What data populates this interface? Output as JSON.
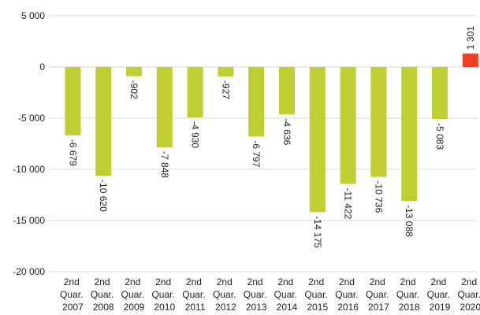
{
  "chart_data": {
    "type": "bar",
    "categories": [
      "2nd Quar. 2007",
      "2nd Quar. 2008",
      "2nd Quar. 2009",
      "2nd Quar. 2010",
      "2nd Quar. 2011",
      "2nd Quar. 2012",
      "2nd Quar. 2013",
      "2nd Quar. 2014",
      "2nd Quar. 2015",
      "2nd Quar. 2016",
      "2nd Quar. 2017",
      "2nd Quar. 2018",
      "2nd Quar. 2019",
      "2nd Quar. 2020"
    ],
    "values": [
      -6679,
      -10620,
      -902,
      -7848,
      -4930,
      -927,
      -6797,
      -4636,
      -14175,
      -11422,
      -10736,
      -13088,
      -5083,
      1301
    ],
    "value_labels": [
      "-6 679",
      "-10 620",
      "-902",
      "-7 848",
      "-4 930",
      "-927",
      "-6 797",
      "-4 636",
      "-14 175",
      "-11 422",
      "-10 736",
      "-13 088",
      "-5 083",
      "1 301"
    ],
    "colors": [
      "#bfce33",
      "#bfce33",
      "#bfce33",
      "#bfce33",
      "#bfce33",
      "#bfce33",
      "#bfce33",
      "#bfce33",
      "#bfce33",
      "#bfce33",
      "#bfce33",
      "#bfce33",
      "#bfce33",
      "#ee4025"
    ],
    "ylim": [
      -20000,
      5000
    ],
    "yticks": [
      {
        "value": 5000,
        "label": "5 000"
      },
      0,
      {
        "value": -5000,
        "label": "-5 000"
      },
      {
        "value": -10000,
        "label": "-10 000"
      },
      {
        "value": -15000,
        "label": "-15 000"
      },
      {
        "value": -20000,
        "label": "-20 000"
      }
    ],
    "grid": true
  }
}
